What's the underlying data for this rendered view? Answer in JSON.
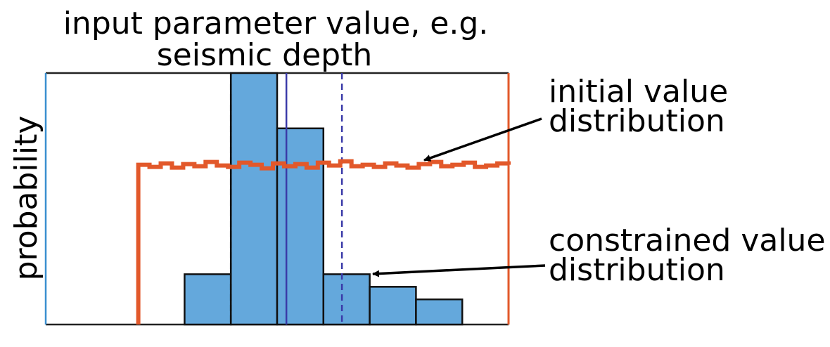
{
  "chart_data": {
    "type": "bar",
    "title": [
      "input parameter value, e.g.",
      "seismic depth"
    ],
    "ylabel": "probability",
    "xlim": [
      0,
      1
    ],
    "ylim": [
      0,
      1
    ],
    "bars": [
      {
        "x0": 0.3,
        "x1": 0.4,
        "value": 0.2
      },
      {
        "x0": 0.4,
        "x1": 0.5,
        "value": 1.0
      },
      {
        "x0": 0.5,
        "x1": 0.6,
        "value": 0.78
      },
      {
        "x0": 0.6,
        "x1": 0.7,
        "value": 0.2
      },
      {
        "x0": 0.7,
        "x1": 0.8,
        "value": 0.15
      },
      {
        "x0": 0.8,
        "x1": 0.9,
        "value": 0.1
      }
    ],
    "reference_lines": [
      {
        "x": 0.4,
        "style": "dashed",
        "color": "#111111"
      },
      {
        "x": 0.52,
        "style": "solid",
        "color": "#3a3aa8"
      },
      {
        "x": 0.64,
        "style": "dashed",
        "color": "#3a3aa8"
      }
    ],
    "uniform_distribution": {
      "x_start": 0.2,
      "x_end": 1.0,
      "level": 0.635,
      "color": "#e2582a"
    },
    "annotations": [
      {
        "label": [
          "initial value",
          "distribution"
        ],
        "target": "uniform_distribution"
      },
      {
        "label": [
          "constrained value",
          "distribution"
        ],
        "target": "bars"
      }
    ],
    "colors": {
      "bar_fill": "#64a8dc",
      "bar_edge": "#111111",
      "frame": "#222222",
      "left_edge": "#3a8fd0"
    }
  }
}
